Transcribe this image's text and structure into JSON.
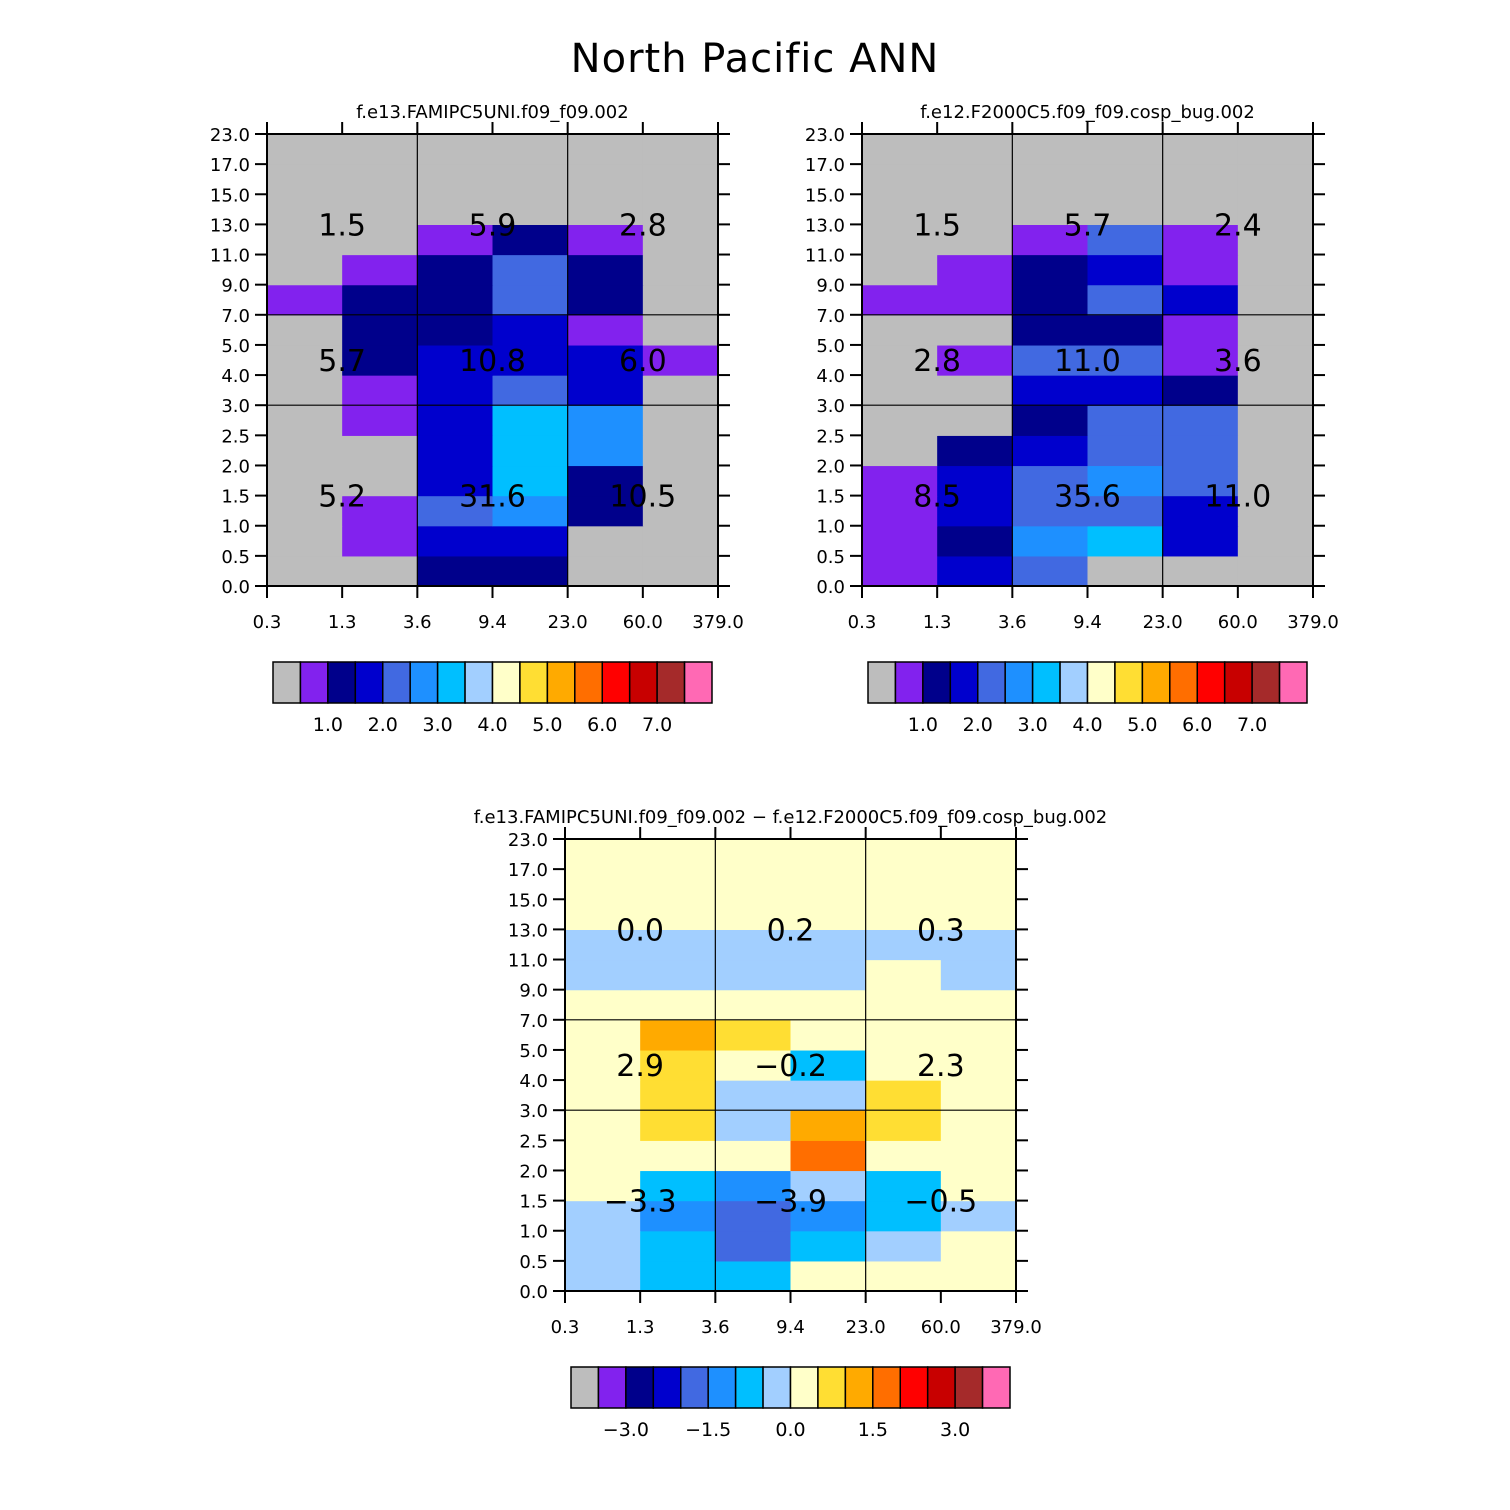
{
  "title": "North Pacific ANN",
  "y_tick_labels": [
    "0.0",
    "0.5",
    "1.0",
    "1.5",
    "2.0",
    "2.5",
    "3.0",
    "4.0",
    "5.0",
    "7.0",
    "9.0",
    "11.0",
    "13.0",
    "15.0",
    "17.0",
    "23.0"
  ],
  "x_tick_labels": [
    "0.3",
    "1.3",
    "3.6",
    "9.4",
    "23.0",
    "60.0",
    "379.0"
  ],
  "abs_palette": [
    "#bdbdbd",
    "#8222ee",
    "#00008b",
    "#0000cd",
    "#4169e1",
    "#1e90ff",
    "#00bfff",
    "#a2cfff",
    "#ffffc9",
    "#ffde33",
    "#ffaa00",
    "#ff6e00",
    "#ff0000",
    "#c80000",
    "#a52a2a",
    "#ff69b4"
  ],
  "diff_palette": [
    "#bdbdbd",
    "#8222ee",
    "#00008b",
    "#0000cd",
    "#4169e1",
    "#1e90ff",
    "#00bfff",
    "#a2cfff",
    "#ffffc9",
    "#ffde33",
    "#ffaa00",
    "#ff6e00",
    "#ff0000",
    "#c80000",
    "#a52a2a",
    "#ff69b4"
  ],
  "chart_data": [
    {
      "type": "heatmap",
      "title": "f.e13.FAMIPC5UNI.f09_f09.002",
      "colorbar_labels": [
        "1.0",
        "2.0",
        "3.0",
        "4.0",
        "5.0",
        "6.0",
        "7.0"
      ],
      "colorbar_levels": [
        0.5,
        1.0,
        1.5,
        2.0,
        2.5,
        3.0,
        3.5,
        4.0,
        4.5,
        5.0,
        5.5,
        6.0,
        6.5,
        7.0
      ],
      "cells_rows_bottom_to_top": [
        [
          0,
          0,
          2,
          2,
          0,
          0
        ],
        [
          0,
          1,
          3,
          3,
          0,
          0
        ],
        [
          0,
          1,
          4,
          5,
          2,
          0
        ],
        [
          0,
          0,
          3,
          6,
          2,
          0
        ],
        [
          0,
          0,
          3,
          6,
          5,
          0
        ],
        [
          0,
          1,
          3,
          6,
          5,
          0
        ],
        [
          0,
          1,
          3,
          4,
          3,
          0
        ],
        [
          0,
          2,
          3,
          3,
          3,
          1
        ],
        [
          0,
          2,
          2,
          3,
          1,
          0
        ],
        [
          1,
          2,
          2,
          4,
          2,
          0
        ],
        [
          0,
          1,
          2,
          4,
          2,
          0
        ],
        [
          0,
          0,
          1,
          2,
          1,
          0
        ],
        [
          0,
          0,
          0,
          0,
          0,
          0
        ],
        [
          0,
          0,
          0,
          0,
          0,
          0
        ],
        [
          0,
          0,
          0,
          0,
          0,
          0
        ]
      ],
      "box_values": [
        [
          "5.2",
          "31.6",
          "10.5"
        ],
        [
          "5.7",
          "10.8",
          "6.0"
        ],
        [
          "1.5",
          "5.9",
          "2.8"
        ]
      ]
    },
    {
      "type": "heatmap",
      "title": "f.e12.F2000C5.f09_f09.cosp_bug.002",
      "colorbar_labels": [
        "1.0",
        "2.0",
        "3.0",
        "4.0",
        "5.0",
        "6.0",
        "7.0"
      ],
      "colorbar_levels": [
        0.5,
        1.0,
        1.5,
        2.0,
        2.5,
        3.0,
        3.5,
        4.0,
        4.5,
        5.0,
        5.5,
        6.0,
        6.5,
        7.0
      ],
      "cells_rows_bottom_to_top": [
        [
          1,
          3,
          4,
          0,
          0,
          0
        ],
        [
          1,
          2,
          5,
          6,
          3,
          0
        ],
        [
          1,
          3,
          4,
          4,
          3,
          0
        ],
        [
          1,
          3,
          4,
          5,
          4,
          0
        ],
        [
          0,
          2,
          3,
          4,
          4,
          0
        ],
        [
          0,
          0,
          2,
          4,
          4,
          0
        ],
        [
          0,
          0,
          3,
          3,
          2,
          0
        ],
        [
          0,
          1,
          4,
          4,
          1,
          0
        ],
        [
          0,
          0,
          2,
          2,
          1,
          0
        ],
        [
          1,
          1,
          2,
          4,
          3,
          0
        ],
        [
          0,
          1,
          2,
          3,
          1,
          0
        ],
        [
          0,
          0,
          1,
          4,
          1,
          0
        ],
        [
          0,
          0,
          0,
          0,
          0,
          0
        ],
        [
          0,
          0,
          0,
          0,
          0,
          0
        ],
        [
          0,
          0,
          0,
          0,
          0,
          0
        ]
      ],
      "box_values": [
        [
          "8.5",
          "35.6",
          "11.0"
        ],
        [
          "2.8",
          "11.0",
          "3.6"
        ],
        [
          "1.5",
          "5.7",
          "2.4"
        ]
      ]
    },
    {
      "type": "heatmap",
      "title": "f.e13.FAMIPC5UNI.f09_f09.002 − f.e12.F2000C5.f09_f09.cosp_bug.002",
      "colorbar_labels": [
        "−3.0",
        "−1.5",
        "0.0",
        "1.5",
        "3.0"
      ],
      "colorbar_levels": [
        -3.5,
        -3.0,
        -2.5,
        -2.0,
        -1.5,
        -1.0,
        -0.5,
        0.0,
        0.5,
        1.0,
        1.5,
        2.0,
        2.5,
        3.0
      ],
      "cells_rows_bottom_to_top": [
        [
          7,
          6,
          6,
          8,
          8,
          8
        ],
        [
          7,
          6,
          4,
          6,
          7,
          8
        ],
        [
          7,
          5,
          4,
          5,
          6,
          7
        ],
        [
          8,
          6,
          5,
          7,
          6,
          8
        ],
        [
          8,
          8,
          8,
          11,
          8,
          8
        ],
        [
          8,
          9,
          7,
          10,
          9,
          8
        ],
        [
          8,
          9,
          7,
          7,
          9,
          8
        ],
        [
          8,
          9,
          8,
          6,
          8,
          8
        ],
        [
          8,
          10,
          9,
          8,
          8,
          8
        ],
        [
          8,
          8,
          8,
          8,
          8,
          8
        ],
        [
          7,
          7,
          7,
          7,
          8,
          7
        ],
        [
          7,
          7,
          7,
          7,
          7,
          7
        ],
        [
          8,
          8,
          8,
          8,
          8,
          8
        ],
        [
          8,
          8,
          8,
          8,
          8,
          8
        ],
        [
          8,
          8,
          8,
          8,
          8,
          8
        ]
      ],
      "box_values": [
        [
          "−3.3",
          "−3.9",
          "−0.5"
        ],
        [
          "2.9",
          "−0.2",
          "2.3"
        ],
        [
          "0.0",
          "0.2",
          "0.3"
        ]
      ]
    }
  ]
}
